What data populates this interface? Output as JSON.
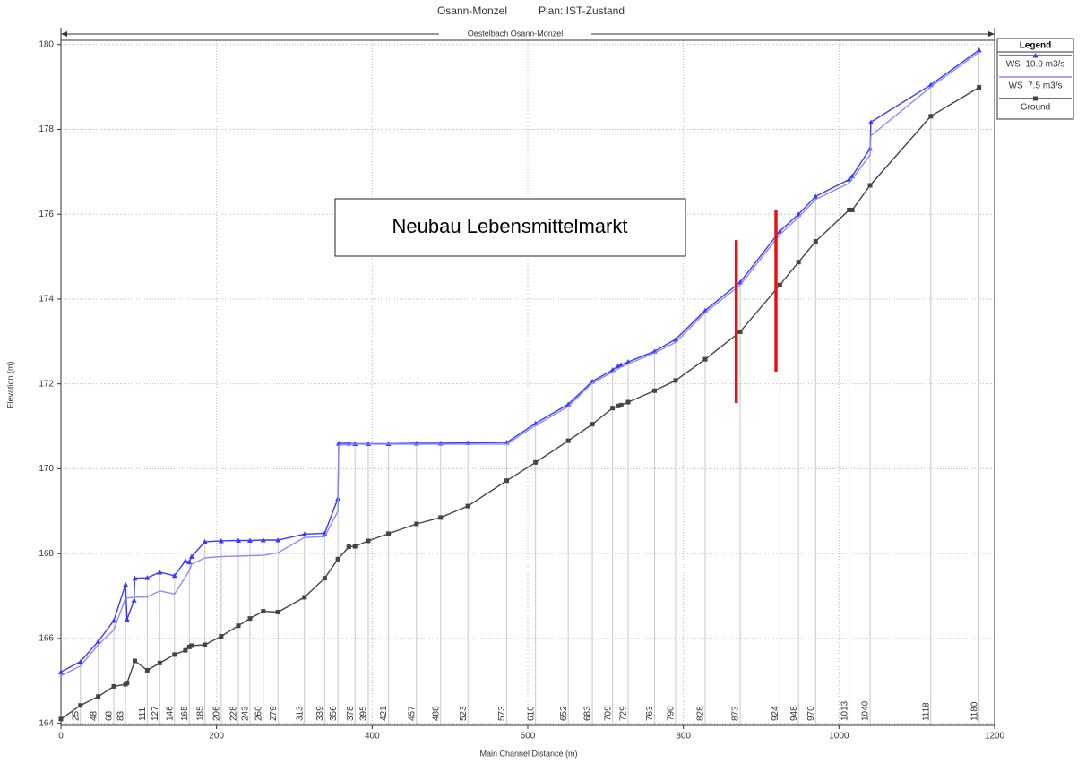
{
  "chart_data": {
    "type": "line",
    "title": "Osann-Monzel",
    "plan": "Plan: IST-Zustand",
    "subtitle": "Oestelbach Osann-Monzel",
    "xlabel": "Main Channel Distance (m)",
    "ylabel": "Elevation (m)",
    "xlim": [
      0,
      1200
    ],
    "ylim": [
      163.95,
      180.1
    ],
    "xticks": [
      0,
      200,
      400,
      600,
      800,
      1000,
      1200
    ],
    "yticks": [
      164,
      166,
      168,
      170,
      172,
      174,
      176,
      178,
      180
    ],
    "grid": true,
    "legend": {
      "title": "Legend",
      "position": "right"
    },
    "stations": [
      25,
      48,
      68,
      83,
      111,
      127,
      146,
      165,
      185,
      206,
      228,
      243,
      260,
      279,
      313,
      339,
      356,
      378,
      395,
      421,
      457,
      488,
      523,
      573,
      610,
      652,
      683,
      709,
      729,
      763,
      790,
      828,
      873,
      924,
      948,
      970,
      1013,
      1040,
      1118,
      1180
    ],
    "series": [
      {
        "name": "WS  10.0 m3/s",
        "color": "#3a3aff",
        "marker": "triangle",
        "x": [
          0,
          25,
          48,
          68,
          83,
          85,
          94,
          95,
          111,
          127,
          146,
          160,
          165,
          168,
          185,
          206,
          228,
          243,
          260,
          279,
          313,
          339,
          356,
          357,
          370,
          378,
          395,
          421,
          457,
          488,
          523,
          573,
          610,
          652,
          683,
          709,
          716,
          720,
          729,
          763,
          790,
          828,
          873,
          924,
          948,
          970,
          1013,
          1017,
          1040,
          1041,
          1118,
          1180
        ],
        "values": [
          165.21,
          165.45,
          165.93,
          166.42,
          167.27,
          166.45,
          166.9,
          167.42,
          167.43,
          167.56,
          167.48,
          167.83,
          167.8,
          167.93,
          168.28,
          168.3,
          168.31,
          168.31,
          168.32,
          168.32,
          168.46,
          168.48,
          169.3,
          170.6,
          170.6,
          170.59,
          170.59,
          170.59,
          170.6,
          170.6,
          170.61,
          170.62,
          171.07,
          171.52,
          172.06,
          172.33,
          172.42,
          172.45,
          172.52,
          172.77,
          173.05,
          173.73,
          174.4,
          175.6,
          176.0,
          176.42,
          176.82,
          176.9,
          177.55,
          178.17,
          179.05,
          179.87
        ]
      },
      {
        "name": "WS  7.5 m3/s",
        "color": "#8a8aff",
        "marker": null,
        "x": [
          0,
          25,
          48,
          68,
          83,
          95,
          111,
          127,
          146,
          160,
          165,
          168,
          185,
          206,
          228,
          243,
          260,
          279,
          313,
          339,
          356,
          357,
          370,
          573,
          610,
          652,
          683,
          709,
          720,
          729,
          763,
          790,
          828,
          873,
          924,
          948,
          970,
          1013,
          1040,
          1041,
          1118,
          1180
        ],
        "values": [
          165.12,
          165.35,
          165.85,
          166.2,
          166.95,
          166.97,
          166.98,
          167.12,
          167.05,
          167.45,
          167.6,
          167.75,
          167.9,
          167.93,
          167.94,
          167.95,
          167.96,
          168.02,
          168.38,
          168.4,
          169.0,
          170.55,
          170.58,
          170.58,
          171.02,
          171.47,
          172.02,
          172.28,
          172.4,
          172.47,
          172.73,
          172.98,
          173.68,
          174.33,
          175.52,
          175.93,
          176.35,
          176.73,
          177.4,
          177.85,
          179.0,
          179.82
        ]
      },
      {
        "name": "Ground",
        "color": "#444444",
        "marker": "square",
        "x": [
          0,
          25,
          48,
          68,
          83,
          85,
          95,
          111,
          127,
          146,
          160,
          165,
          168,
          185,
          206,
          228,
          243,
          260,
          279,
          313,
          339,
          356,
          370,
          378,
          395,
          421,
          457,
          488,
          523,
          573,
          610,
          652,
          683,
          709,
          716,
          720,
          729,
          763,
          790,
          828,
          873,
          924,
          948,
          970,
          1013,
          1017,
          1040,
          1118,
          1180
        ],
        "values": [
          164.1,
          164.42,
          164.63,
          164.87,
          164.92,
          164.95,
          165.47,
          165.25,
          165.42,
          165.62,
          165.72,
          165.8,
          165.83,
          165.85,
          166.05,
          166.3,
          166.47,
          166.64,
          166.62,
          166.97,
          167.42,
          167.87,
          168.16,
          168.17,
          168.3,
          168.47,
          168.7,
          168.85,
          169.12,
          169.72,
          170.15,
          170.66,
          171.05,
          171.43,
          171.48,
          171.5,
          171.57,
          171.84,
          172.08,
          172.58,
          173.23,
          174.33,
          174.87,
          175.36,
          176.1,
          176.1,
          176.68,
          178.31,
          178.99
        ]
      }
    ],
    "annotation": "Neubau Lebensmittelmarkt",
    "highlight_lines": [
      {
        "x": 868,
        "y": [
          171.55,
          175.39
        ],
        "color": "#e41414"
      },
      {
        "x": 919,
        "y": [
          172.29,
          176.11
        ],
        "color": "#e41414"
      }
    ]
  }
}
